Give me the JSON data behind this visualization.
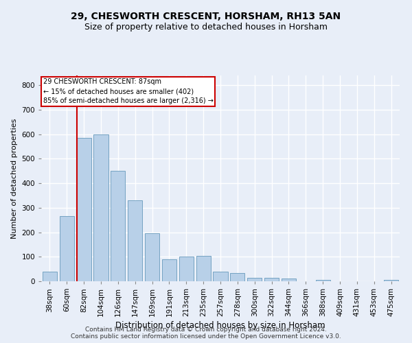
{
  "title1": "29, CHESWORTH CRESCENT, HORSHAM, RH13 5AN",
  "title2": "Size of property relative to detached houses in Horsham",
  "xlabel": "Distribution of detached houses by size in Horsham",
  "ylabel": "Number of detached properties",
  "footer_line1": "Contains HM Land Registry data © Crown copyright and database right 2024.",
  "footer_line2": "Contains public sector information licensed under the Open Government Licence v3.0.",
  "categories": [
    "38sqm",
    "60sqm",
    "82sqm",
    "104sqm",
    "126sqm",
    "147sqm",
    "169sqm",
    "191sqm",
    "213sqm",
    "235sqm",
    "257sqm",
    "278sqm",
    "300sqm",
    "322sqm",
    "344sqm",
    "366sqm",
    "388sqm",
    "409sqm",
    "431sqm",
    "453sqm",
    "475sqm"
  ],
  "values": [
    38,
    265,
    585,
    600,
    450,
    330,
    195,
    90,
    100,
    105,
    38,
    33,
    15,
    15,
    10,
    0,
    7,
    0,
    0,
    0,
    7
  ],
  "bar_color": "#b8d0e8",
  "bar_edge_color": "#6699bb",
  "property_line_color": "#cc0000",
  "annotation_text_line1": "29 CHESWORTH CRESCENT: 87sqm",
  "annotation_text_line2": "← 15% of detached houses are smaller (402)",
  "annotation_text_line3": "85% of semi-detached houses are larger (2,316) →",
  "annotation_box_color": "#cc0000",
  "ylim": [
    0,
    840
  ],
  "yticks": [
    0,
    100,
    200,
    300,
    400,
    500,
    600,
    700,
    800
  ],
  "background_color": "#e8eef8",
  "plot_bg_color": "#e8eef8",
  "grid_color": "#ffffff",
  "title1_fontsize": 10,
  "title2_fontsize": 9,
  "xlabel_fontsize": 8.5,
  "ylabel_fontsize": 8,
  "tick_fontsize": 7.5,
  "footer_fontsize": 6.5
}
